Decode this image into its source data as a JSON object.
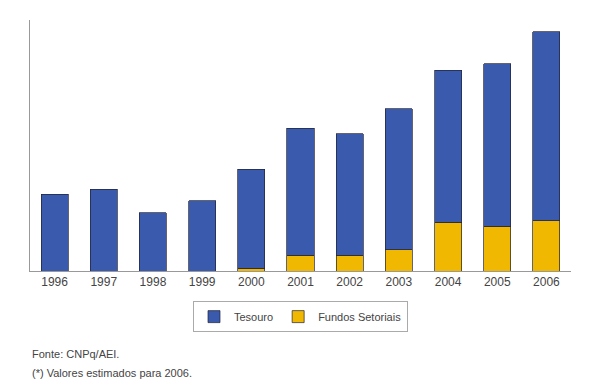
{
  "chart_data": {
    "type": "bar",
    "stacked": true,
    "categories": [
      "1996",
      "1997",
      "1998",
      "1999",
      "2000",
      "2001",
      "2002",
      "2003",
      "2004",
      "2005",
      "2006"
    ],
    "series": [
      {
        "name": "Tesouro",
        "color": "#3a5aad",
        "values": [
          290,
          310,
          220,
          265,
          375,
          480,
          460,
          535,
          575,
          615,
          715
        ]
      },
      {
        "name": "Fundos Setoriais",
        "color": "#f0b800",
        "values": [
          0,
          0,
          0,
          0,
          10,
          60,
          60,
          80,
          185,
          170,
          190
        ]
      }
    ],
    "ylim": [
      0,
      950
    ],
    "yticks": [],
    "grid": false,
    "tick_labels": "x",
    "legend": "bottom",
    "annotations": [
      "Fonte: CNPq/AEI.",
      "(*) Valores estimados para 2006."
    ]
  }
}
